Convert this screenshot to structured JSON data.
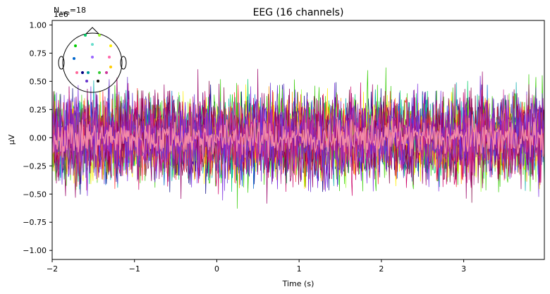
{
  "chart_data": {
    "type": "line",
    "title": "EEG (16 channels)",
    "xlabel": "Time (s)",
    "ylabel": "µV",
    "xlim": [
      -2,
      3.98
    ],
    "ylim": [
      -1.08,
      1.04
    ],
    "x_ticks": [
      -2,
      -1,
      0,
      1,
      2,
      3
    ],
    "y_ticks": [
      -1.0,
      -0.75,
      -0.5,
      -0.25,
      0.0,
      0.25,
      0.5,
      0.75,
      1.0
    ],
    "x_tick_labels": [
      "−2",
      "−1",
      "0",
      "1",
      "2",
      "3"
    ],
    "y_tick_labels": [
      "−1.00",
      "−0.75",
      "−0.50",
      "−0.25",
      "0.00",
      "0.25",
      "0.50",
      "0.75",
      "1.00"
    ],
    "y_offset_text": "1e6",
    "n_ave_label": "N",
    "n_ave_subscript": "ave",
    "n_ave_value": "=18",
    "grid": false,
    "legend": "none",
    "sensor_inset": "top-left",
    "series_colors": [
      "#000080",
      "#0066cc",
      "#00aaaa",
      "#00cc66",
      "#33cc00",
      "#99ff33",
      "#ffee00",
      "#ff9900",
      "#ff3333",
      "#cc0066",
      "#990066",
      "#800040",
      "#6633cc",
      "#7a2be0",
      "#cc3399",
      "#f28aa8"
    ],
    "series_amplitude": [
      0.55,
      0.52,
      0.5,
      0.55,
      0.6,
      0.5,
      0.5,
      0.48,
      0.5,
      0.58,
      0.62,
      0.55,
      0.52,
      0.58,
      0.45,
      0.22
    ],
    "sensors": [
      {
        "color": "#00cc66"
      },
      {
        "color": "#99ff33"
      },
      {
        "color": "#ffee00"
      },
      {
        "color": "#00cc00"
      },
      {
        "color": "#66ddcc"
      },
      {
        "color": "#ff66aa"
      },
      {
        "color": "#0066cc"
      },
      {
        "color": "#9966ff"
      },
      {
        "color": "#ffcc00"
      },
      {
        "color": "#ff6699"
      },
      {
        "color": "#000080"
      },
      {
        "color": "#009999"
      },
      {
        "color": "#33cc33"
      },
      {
        "color": "#cc3399"
      },
      {
        "color": "#6633cc"
      },
      {
        "color": "#000000"
      }
    ]
  }
}
